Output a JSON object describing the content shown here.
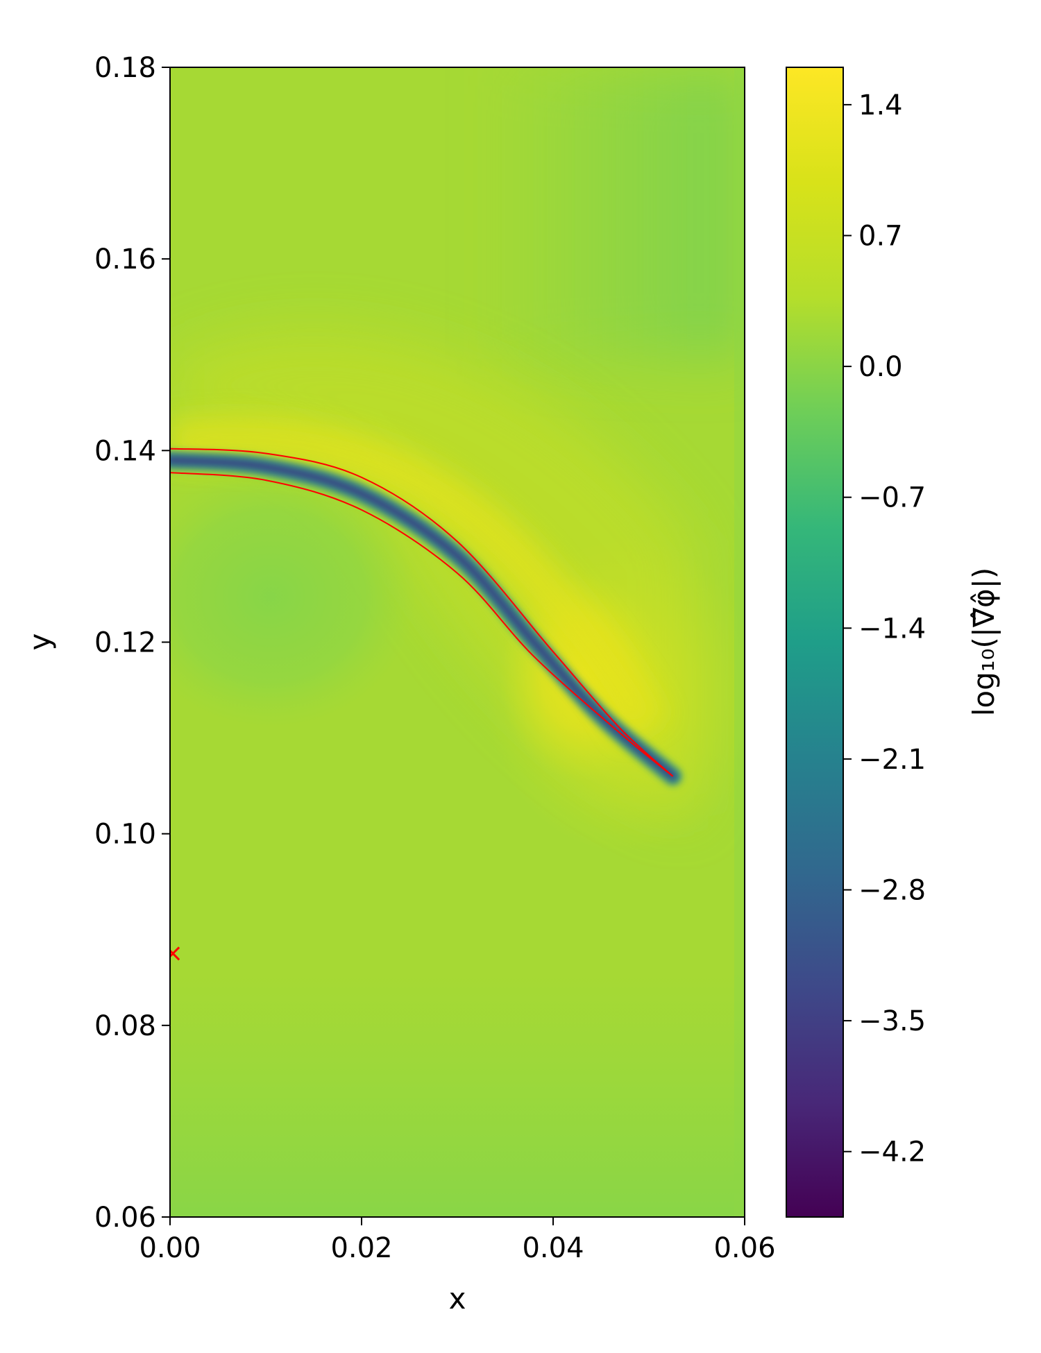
{
  "chart_data": {
    "type": "heatmap",
    "title": "",
    "xlabel": "x",
    "ylabel": "y",
    "xlim": [
      0.0,
      0.06
    ],
    "ylim": [
      0.06,
      0.18
    ],
    "x_ticks": [
      "0.00",
      "0.02",
      "0.04",
      "0.06"
    ],
    "y_ticks": [
      "0.06",
      "0.08",
      "0.10",
      "0.12",
      "0.14",
      "0.16",
      "0.18"
    ],
    "grid": false,
    "colorbar": {
      "label": "log₁₀(|∇̂φ̂|)",
      "colormap": "viridis",
      "range": [
        -4.55,
        1.6
      ],
      "ticks": [
        "1.4",
        "0.7",
        "0.0",
        "−0.7",
        "−1.4",
        "−2.1",
        "−2.8",
        "−3.5",
        "−4.2"
      ]
    },
    "field_background_color": "#a6d934",
    "front_curve": {
      "color": "#ff0000",
      "centerline": [
        [
          0.0,
          0.139
        ],
        [
          0.01,
          0.1383
        ],
        [
          0.02,
          0.1355
        ],
        [
          0.03,
          0.129
        ],
        [
          0.038,
          0.12
        ],
        [
          0.045,
          0.1123
        ],
        [
          0.0525,
          0.106
        ]
      ],
      "upper_boundary": [
        [
          0.0,
          0.1402
        ],
        [
          0.01,
          0.1397
        ],
        [
          0.02,
          0.1372
        ],
        [
          0.03,
          0.1305
        ],
        [
          0.04,
          0.119
        ],
        [
          0.047,
          0.111
        ],
        [
          0.0525,
          0.106
        ]
      ],
      "lower_boundary": [
        [
          0.0,
          0.1377
        ],
        [
          0.01,
          0.1369
        ],
        [
          0.02,
          0.1338
        ],
        [
          0.03,
          0.1272
        ],
        [
          0.038,
          0.1185
        ],
        [
          0.047,
          0.1105
        ],
        [
          0.0525,
          0.106
        ]
      ]
    },
    "marker": {
      "symbol": "x",
      "color": "#ff0000",
      "x": 0.0003,
      "y": 0.0875
    }
  }
}
